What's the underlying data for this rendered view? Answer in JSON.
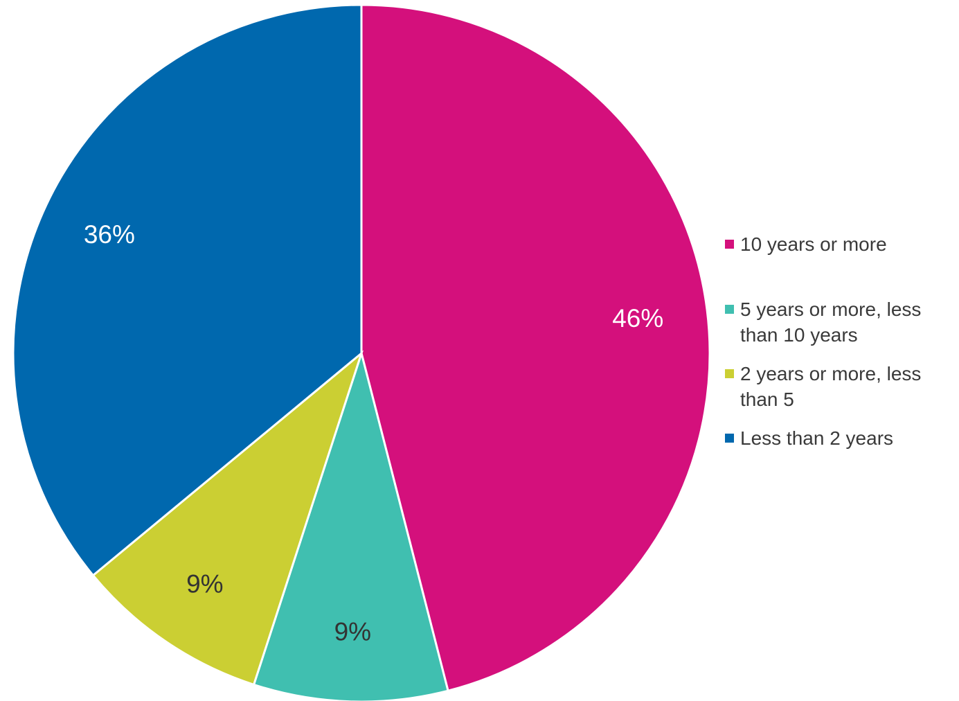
{
  "chart_data": {
    "type": "pie",
    "title": "",
    "start_angle_deg": 0,
    "direction": "clockwise",
    "slices": [
      {
        "label": "10 years or more",
        "value": 46,
        "display": "46%",
        "color": "#D4107C",
        "label_color": "#FFFFFF"
      },
      {
        "label": "5 years or more, less than 10 years",
        "value": 9,
        "display": "9%",
        "color": "#40BFB0",
        "label_color": "#333333"
      },
      {
        "label": "2 years or more, less than 5",
        "value": 9,
        "display": "9%",
        "color": "#CBCF33",
        "label_color": "#333333"
      },
      {
        "label": "Less than 2 years",
        "value": 36,
        "display": "36%",
        "color": "#0068AE",
        "label_color": "#FFFFFF"
      }
    ],
    "legend_position": "right"
  }
}
